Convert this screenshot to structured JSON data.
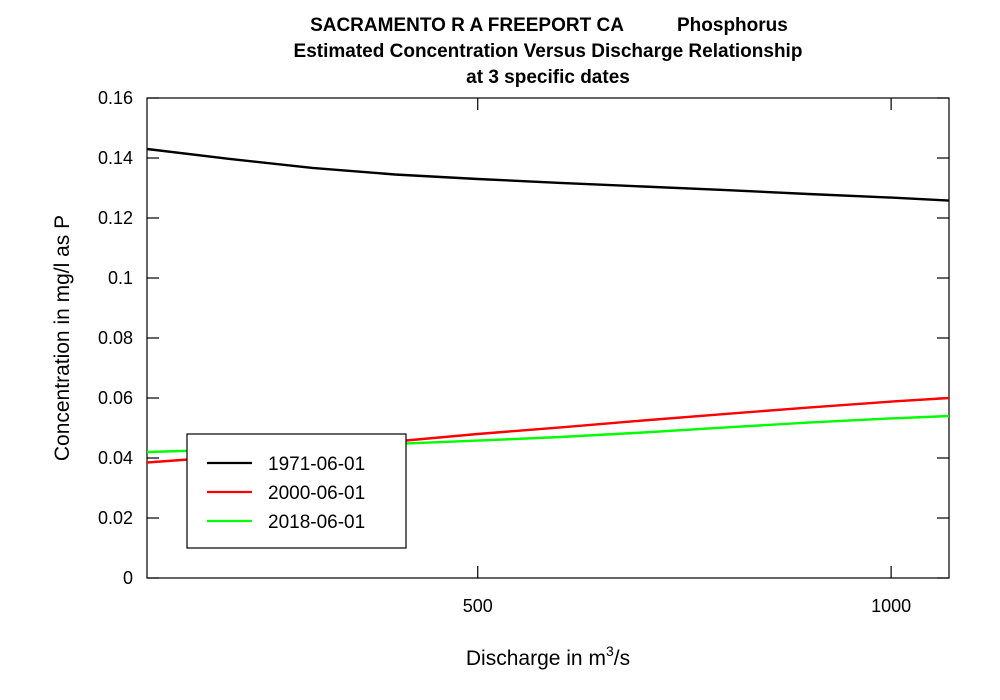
{
  "chart_data": {
    "type": "line",
    "title": {
      "line1_site": "SACRAMENTO R A FREEPORT CA",
      "line1_param": "Phosphorus",
      "line2": "Estimated Concentration Versus Discharge Relationship",
      "line3": "at 3 specific dates"
    },
    "xlabel": {
      "base": "Discharge in m",
      "sup": "3",
      "suffix": "/s"
    },
    "ylabel": "Concentration in mg/l as P",
    "xlim": [
      100,
      1070
    ],
    "ylim": [
      0,
      0.16
    ],
    "x_ticks": [
      500,
      1000
    ],
    "x_tick_labels": [
      "500",
      "1000"
    ],
    "y_ticks": [
      0,
      0.02,
      0.04,
      0.06,
      0.08,
      0.1,
      0.12,
      0.14,
      0.16
    ],
    "y_tick_labels": [
      "0",
      "0.02",
      "0.04",
      "0.06",
      "0.08",
      "0.1",
      "0.12",
      "0.14",
      "0.16"
    ],
    "grid": false,
    "legend_position": "bottom-left",
    "series": [
      {
        "name": "1971-06-01",
        "color": "#000000",
        "x": [
          100,
          200,
          300,
          400,
          500,
          600,
          700,
          800,
          900,
          1000,
          1070
        ],
        "y": [
          0.143,
          0.1397,
          0.1367,
          0.1345,
          0.133,
          0.1317,
          0.1305,
          0.1293,
          0.128,
          0.1268,
          0.1258
        ]
      },
      {
        "name": "2000-06-01",
        "color": "#ff0000",
        "x": [
          100,
          200,
          300,
          400,
          500,
          600,
          700,
          800,
          900,
          1000,
          1070
        ],
        "y": [
          0.0385,
          0.0405,
          0.0427,
          0.0455,
          0.048,
          0.0502,
          0.0525,
          0.0547,
          0.0568,
          0.0588,
          0.06
        ]
      },
      {
        "name": "2018-06-01",
        "color": "#00ff00",
        "x": [
          100,
          200,
          300,
          400,
          500,
          600,
          700,
          800,
          900,
          1000,
          1070
        ],
        "y": [
          0.042,
          0.0428,
          0.0437,
          0.0447,
          0.0458,
          0.047,
          0.0485,
          0.0502,
          0.0518,
          0.0532,
          0.054
        ]
      }
    ]
  }
}
